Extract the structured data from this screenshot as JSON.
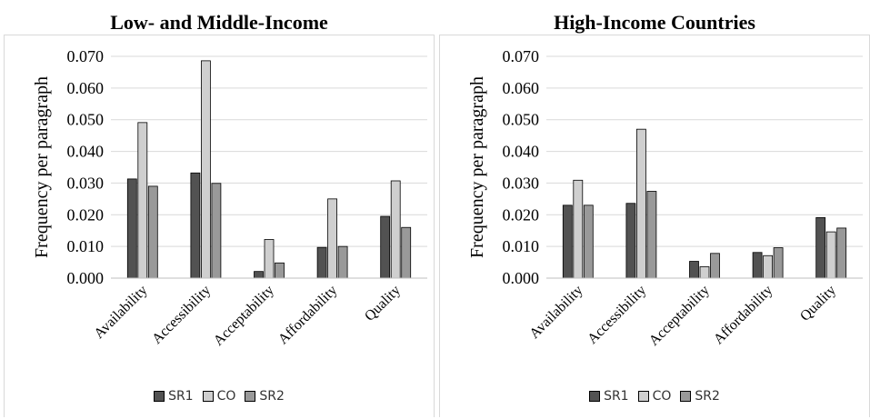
{
  "colors": {
    "SR1": "#525252",
    "CO": "#cfcfcf",
    "SR2": "#999999"
  },
  "chart_data": [
    {
      "type": "bar",
      "title": "Low- and Middle-Income",
      "ylabel": "Frequency per paragraph",
      "xlabel": "",
      "ylim": [
        0,
        0.07
      ],
      "yticks": [
        "0.000",
        "0.010",
        "0.020",
        "0.030",
        "0.040",
        "0.050",
        "0.060",
        "0.070"
      ],
      "categories": [
        "Availability",
        "Accessibility",
        "Acceptability",
        "Affordability",
        "Quality"
      ],
      "series": [
        {
          "name": "SR1",
          "values": [
            0.0313,
            0.0332,
            0.0021,
            0.0097,
            0.0195
          ]
        },
        {
          "name": "CO",
          "values": [
            0.0491,
            0.0686,
            0.0122,
            0.025,
            0.0307
          ]
        },
        {
          "name": "SR2",
          "values": [
            0.029,
            0.0299,
            0.0048,
            0.01,
            0.016
          ]
        }
      ],
      "grid": true,
      "legend": "bottom"
    },
    {
      "type": "bar",
      "title": "High-Income Countries",
      "ylabel": "Frequency per paragraph",
      "xlabel": "",
      "ylim": [
        0,
        0.07
      ],
      "yticks": [
        "0.000",
        "0.010",
        "0.020",
        "0.030",
        "0.040",
        "0.050",
        "0.060",
        "0.070"
      ],
      "categories": [
        "Availability",
        "Accessibility",
        "Acceptability",
        "Affordability",
        "Quality"
      ],
      "series": [
        {
          "name": "SR1",
          "values": [
            0.023,
            0.0236,
            0.0053,
            0.0081,
            0.0191
          ]
        },
        {
          "name": "CO",
          "values": [
            0.0309,
            0.047,
            0.0036,
            0.0071,
            0.0146
          ]
        },
        {
          "name": "SR2",
          "values": [
            0.023,
            0.0274,
            0.0078,
            0.0096,
            0.0158
          ]
        }
      ],
      "grid": true,
      "legend": "bottom"
    }
  ]
}
